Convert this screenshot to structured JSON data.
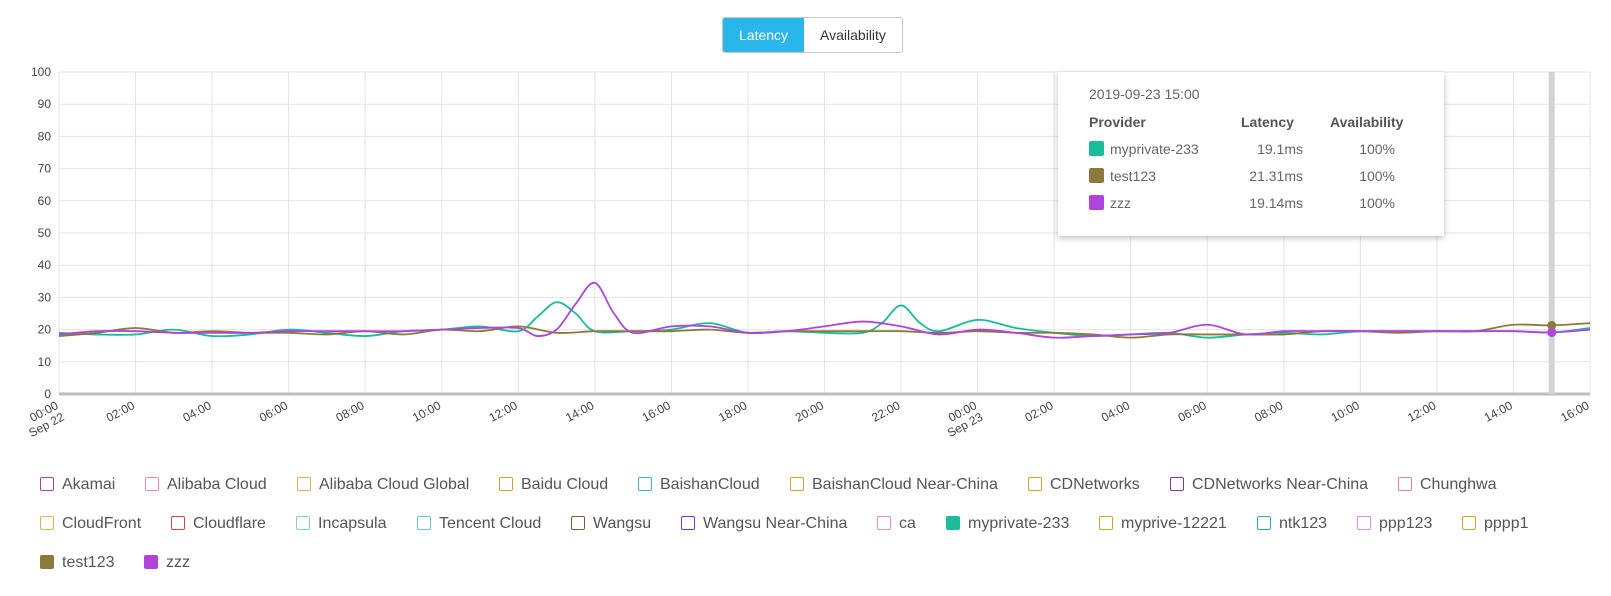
{
  "tabs": [
    {
      "label": "Latency",
      "active": true
    },
    {
      "label": "Availability",
      "active": false
    }
  ],
  "chart_data": {
    "type": "line",
    "ylim": [
      0,
      100
    ],
    "y_ticks": [
      "0",
      "10",
      "20",
      "30",
      "40",
      "50",
      "60",
      "70",
      "80",
      "90",
      "100"
    ],
    "x_range_hours": [
      0,
      40
    ],
    "x_ticks": [
      {
        "hour": 0,
        "label": "00:00",
        "sub": "Sep 22"
      },
      {
        "hour": 2,
        "label": "02:00"
      },
      {
        "hour": 4,
        "label": "04:00"
      },
      {
        "hour": 6,
        "label": "06:00"
      },
      {
        "hour": 8,
        "label": "08:00"
      },
      {
        "hour": 10,
        "label": "10:00"
      },
      {
        "hour": 12,
        "label": "12:00"
      },
      {
        "hour": 14,
        "label": "14:00"
      },
      {
        "hour": 16,
        "label": "16:00"
      },
      {
        "hour": 18,
        "label": "18:00"
      },
      {
        "hour": 20,
        "label": "20:00"
      },
      {
        "hour": 22,
        "label": "22:00"
      },
      {
        "hour": 24,
        "label": "00:00",
        "sub": "Sep 23"
      },
      {
        "hour": 26,
        "label": "02:00"
      },
      {
        "hour": 28,
        "label": "04:00"
      },
      {
        "hour": 30,
        "label": "06:00"
      },
      {
        "hour": 32,
        "label": "08:00"
      },
      {
        "hour": 34,
        "label": "10:00"
      },
      {
        "hour": 36,
        "label": "12:00"
      },
      {
        "hour": 38,
        "label": "14:00"
      },
      {
        "hour": 40,
        "label": "16:00"
      }
    ],
    "crosshair_hour": 39,
    "series": [
      {
        "name": "myprivate-233",
        "color": "#1abc9c",
        "x": [
          0,
          1,
          2,
          3,
          4,
          5,
          6,
          7,
          8,
          9,
          10,
          11,
          12,
          12.5,
          13,
          13.5,
          14,
          15,
          16,
          17,
          18,
          19,
          20,
          21,
          21.5,
          22,
          22.5,
          23,
          24,
          25,
          26,
          27,
          28,
          29,
          30,
          31,
          32,
          33,
          34,
          35,
          36,
          37,
          38,
          39,
          40
        ],
        "y": [
          19,
          18.5,
          18.5,
          20,
          18,
          18.5,
          20,
          19,
          18,
          19.5,
          20,
          21,
          19.5,
          24,
          28.5,
          25,
          19.5,
          19.5,
          20,
          22,
          19,
          19.5,
          19,
          19,
          22,
          27.5,
          22,
          19.5,
          23,
          20.5,
          19,
          18,
          18.5,
          19,
          17.5,
          18.5,
          19,
          18.5,
          19.5,
          19.5,
          19.5,
          19.5,
          19.5,
          19.1,
          20.5
        ]
      },
      {
        "name": "test123",
        "color": "#8c7a3c",
        "x": [
          0,
          1,
          2,
          3,
          4,
          5,
          6,
          7,
          8,
          9,
          10,
          11,
          12,
          13,
          14,
          15,
          16,
          17,
          18,
          19,
          20,
          21,
          22,
          23,
          24,
          25,
          26,
          27,
          28,
          29,
          30,
          31,
          32,
          33,
          34,
          35,
          36,
          37,
          38,
          39,
          40
        ],
        "y": [
          18,
          19,
          20.5,
          19,
          19.5,
          19,
          19,
          18.5,
          19.5,
          18.5,
          20,
          19.5,
          21,
          19,
          19.5,
          19.5,
          19.5,
          20,
          19,
          19.5,
          19.5,
          19.5,
          19.5,
          19,
          19.5,
          19,
          19,
          18.5,
          17.5,
          18.5,
          18.5,
          18.5,
          18.5,
          19.5,
          19.5,
          19,
          19.5,
          19.5,
          21.5,
          21.31,
          22
        ]
      },
      {
        "name": "zzz",
        "color": "#b044dc",
        "x": [
          0,
          1,
          2,
          3,
          4,
          5,
          6,
          7,
          8,
          9,
          10,
          11,
          12,
          12.5,
          13,
          13.5,
          14,
          14.5,
          15,
          16,
          17,
          18,
          19,
          20,
          21,
          22,
          23,
          24,
          25,
          26,
          27,
          28,
          29,
          30,
          31,
          32,
          33,
          34,
          35,
          36,
          37,
          38,
          39,
          40
        ],
        "y": [
          18.5,
          19.5,
          19.5,
          19,
          19,
          19,
          19.5,
          19.5,
          19.5,
          19.5,
          20,
          20.5,
          20.5,
          18,
          20,
          28,
          34.5,
          25,
          19,
          21,
          21,
          19,
          19.5,
          21,
          22.5,
          21,
          18.5,
          20,
          19,
          17.5,
          18,
          18.5,
          19,
          21.5,
          18.5,
          19.5,
          19.5,
          19.5,
          19.5,
          19.5,
          19.5,
          19.5,
          19.14,
          20
        ]
      }
    ]
  },
  "tooltip": {
    "time": "2019-09-23 15:00",
    "headers": [
      "Provider",
      "Latency",
      "Availability"
    ],
    "rows": [
      {
        "provider": "myprivate-233",
        "latency": "19.1ms",
        "availability": "100%",
        "color": "#1abc9c"
      },
      {
        "provider": "test123",
        "latency": "21.31ms",
        "availability": "100%",
        "color": "#8c7a3c"
      },
      {
        "provider": "zzz",
        "latency": "19.14ms",
        "availability": "100%",
        "color": "#b044dc"
      }
    ]
  },
  "legend": [
    {
      "label": "Akamai",
      "color": "#9b3fbf",
      "filled": false
    },
    {
      "label": "Alibaba Cloud",
      "color": "#f08caa",
      "filled": false
    },
    {
      "label": "Alibaba Cloud Global",
      "color": "#e0b24a",
      "filled": false
    },
    {
      "label": "Baidu Cloud",
      "color": "#d9a12a",
      "filled": false
    },
    {
      "label": "BaishanCloud",
      "color": "#3cb8c8",
      "filled": false
    },
    {
      "label": "BaishanCloud Near-China",
      "color": "#d9a12a",
      "filled": false
    },
    {
      "label": "CDNetworks",
      "color": "#d9a12a",
      "filled": false
    },
    {
      "label": "CDNetworks Near-China",
      "color": "#8a2fa8",
      "filled": false
    },
    {
      "label": "Chunghwa",
      "color": "#e87aa8",
      "filled": false
    },
    {
      "label": "CloudFront",
      "color": "#e0b24a",
      "filled": false
    },
    {
      "label": "Cloudflare",
      "color": "#d9413e",
      "filled": false
    },
    {
      "label": "Incapsula",
      "color": "#7fd3c6",
      "filled": false
    },
    {
      "label": "Tencent Cloud",
      "color": "#6cc9c9",
      "filled": false
    },
    {
      "label": "Wangsu",
      "color": "#7a5a32",
      "filled": false
    },
    {
      "label": "Wangsu Near-China",
      "color": "#7a35c8",
      "filled": false
    },
    {
      "label": "ca",
      "color": "#f08caa",
      "filled": false
    },
    {
      "label": "myprivate-233",
      "color": "#1abc9c",
      "filled": true
    },
    {
      "label": "myprive-12221",
      "color": "#d9a12a",
      "filled": false
    },
    {
      "label": "ntk123",
      "color": "#2aa7d9",
      "filled": false
    },
    {
      "label": "ppp123",
      "color": "#d58ee6",
      "filled": false
    },
    {
      "label": "pppp1",
      "color": "#d9a12a",
      "filled": false
    },
    {
      "label": "test123",
      "color": "#8c7a3c",
      "filled": true
    },
    {
      "label": "zzz",
      "color": "#b044dc",
      "filled": true
    }
  ]
}
